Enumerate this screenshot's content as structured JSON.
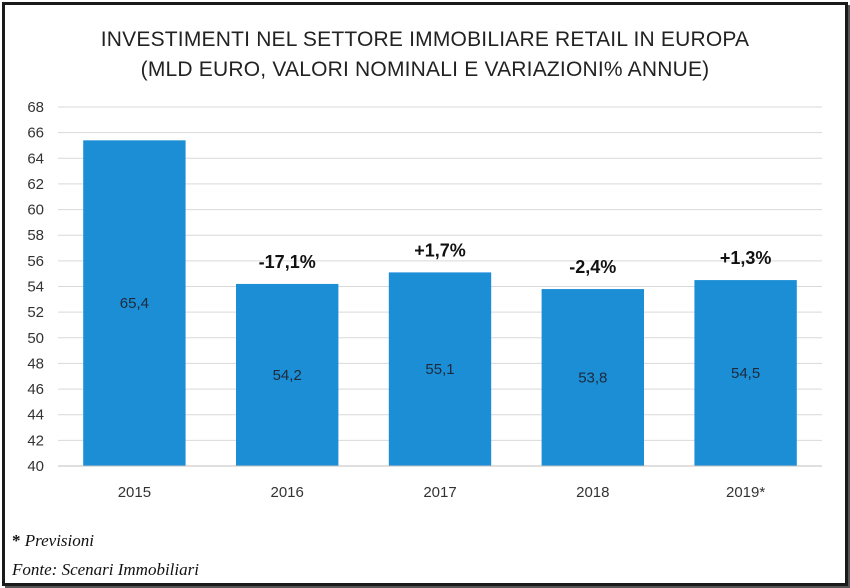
{
  "chart_data": {
    "type": "bar",
    "title": "INVESTIMENTI NEL SETTORE IMMOBILIARE RETAIL IN EUROPA",
    "subtitle": "(MLD EURO, VALORI NOMINALI E VARIAZIONI% ANNUE)",
    "categories": [
      "2015",
      "2016",
      "2017",
      "2018",
      "2019*"
    ],
    "values": [
      65.4,
      54.2,
      55.1,
      53.8,
      54.5
    ],
    "value_labels": [
      "65,4",
      "54,2",
      "55,1",
      "53,8",
      "54,5"
    ],
    "change_labels": [
      "",
      "-17,1%",
      "+1,7%",
      "-2,4%",
      "+1,3%"
    ],
    "yticks": [
      "40",
      "42",
      "44",
      "46",
      "48",
      "50",
      "52",
      "54",
      "56",
      "58",
      "60",
      "62",
      "64",
      "66",
      "68"
    ],
    "ylim": [
      40,
      68
    ],
    "grid": true,
    "bar_color": "#1b8ed6"
  },
  "notes": {
    "previsioni_mark": "*",
    "previsioni_text": "Previsioni",
    "fonte": "Fonte: Scenari Immobiliari"
  }
}
